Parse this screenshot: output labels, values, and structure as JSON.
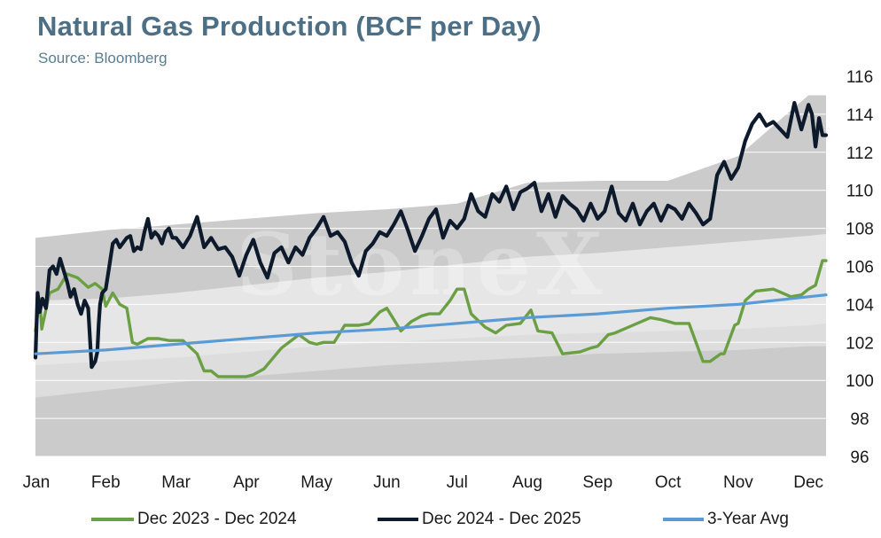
{
  "header": {
    "title": "Natural Gas Production (BCF per Day)",
    "subtitle": "Source: Bloomberg"
  },
  "watermark": "StoneX",
  "chart_data": {
    "type": "line",
    "title": "Natural Gas Production (BCF per Day)",
    "xlabel": "",
    "ylabel": "",
    "ylim": [
      96,
      116
    ],
    "yticks": [
      96,
      98,
      100,
      102,
      104,
      106,
      108,
      110,
      112,
      114,
      116
    ],
    "y_axis_side": "right",
    "x_month_labels": [
      "Jan",
      "Feb",
      "Mar",
      "Apr",
      "May",
      "Jun",
      "Jul",
      "Aug",
      "Sep",
      "Oct",
      "Nov",
      "Dec"
    ],
    "x_unit": "month (0 = Jan 1, 11 = Dec 1)",
    "xlim": [
      0,
      11.25
    ],
    "grid": "horizontal",
    "legend_position": "bottom",
    "bands": {
      "x": [
        0,
        1,
        2,
        3,
        4,
        5,
        6,
        7,
        8,
        9,
        10,
        11,
        11.25
      ],
      "outer_max": [
        107.5,
        107.9,
        108.2,
        108.5,
        108.8,
        109.0,
        109.3,
        110.4,
        110.5,
        110.5,
        111.8,
        115.0,
        115.0
      ],
      "inner_max": [
        104.2,
        104.3,
        104.6,
        105.0,
        105.4,
        105.7,
        106.1,
        106.5,
        106.7,
        107.0,
        107.3,
        107.6,
        107.7
      ],
      "inner_min": [
        100.8,
        101.0,
        101.2,
        101.5,
        101.8,
        102.0,
        102.2,
        102.4,
        102.5,
        102.6,
        102.7,
        102.9,
        103.0
      ],
      "outer_min": [
        99.1,
        99.5,
        99.9,
        100.2,
        100.5,
        100.8,
        101.0,
        101.2,
        101.4,
        101.5,
        101.6,
        101.8,
        101.8
      ]
    },
    "colors": {
      "outer_band": "#cccbcb",
      "inner_band": "#dddddd",
      "middle_band": "#e6e6e6",
      "grid": "#ffffff"
    },
    "series": [
      {
        "name": "Dec 2023 - Dec 2024",
        "color": "#6aa043",
        "x": [
          0,
          0.06,
          0.09,
          0.2,
          0.32,
          0.45,
          0.6,
          0.75,
          0.85,
          0.95,
          1.0,
          1.1,
          1.2,
          1.3,
          1.38,
          1.45,
          1.6,
          1.75,
          1.9,
          2.0,
          2.1,
          2.3,
          2.4,
          2.5,
          2.6,
          2.75,
          2.9,
          3.0,
          3.1,
          3.25,
          3.5,
          3.75,
          3.9,
          4.0,
          4.1,
          4.25,
          4.4,
          4.6,
          4.75,
          4.9,
          5.0,
          5.2,
          5.35,
          5.5,
          5.6,
          5.75,
          5.9,
          6.0,
          6.1,
          6.2,
          6.4,
          6.55,
          6.7,
          6.9,
          7.05,
          7.15,
          7.35,
          7.5,
          7.75,
          7.9,
          8.0,
          8.15,
          8.25,
          8.5,
          8.75,
          8.9,
          9.0,
          9.1,
          9.25,
          9.3,
          9.5,
          9.6,
          9.75,
          9.8,
          9.95,
          10.0,
          10.1,
          10.25,
          10.5,
          10.75,
          10.9,
          11.0,
          11.1,
          11.2,
          11.25
        ],
        "values": [
          102.6,
          104.3,
          102.7,
          104.6,
          104.8,
          105.6,
          105.4,
          104.9,
          105.1,
          104.8,
          103.9,
          104.6,
          104.0,
          103.8,
          102.0,
          101.9,
          102.2,
          102.2,
          102.1,
          102.1,
          102.1,
          101.4,
          100.5,
          100.5,
          100.2,
          100.2,
          100.2,
          100.2,
          100.3,
          100.6,
          101.7,
          102.4,
          102.0,
          101.9,
          102.0,
          102.0,
          102.9,
          102.9,
          103.0,
          103.6,
          103.8,
          102.6,
          103.1,
          103.4,
          103.5,
          103.5,
          104.2,
          104.8,
          104.8,
          103.5,
          102.8,
          102.5,
          102.9,
          103.0,
          103.7,
          102.6,
          102.5,
          101.4,
          101.5,
          101.7,
          101.8,
          102.4,
          102.5,
          102.9,
          103.3,
          103.2,
          103.1,
          103.0,
          103.0,
          103.0,
          101.0,
          101.0,
          101.4,
          101.4,
          102.9,
          103.0,
          104.2,
          104.7,
          104.8,
          104.4,
          104.5,
          104.8,
          105.0,
          106.3,
          106.3
        ]
      },
      {
        "name": "Dec 2024 - Dec 2025",
        "color": "#0c1a2c",
        "x": [
          0,
          0.03,
          0.06,
          0.1,
          0.15,
          0.2,
          0.25,
          0.3,
          0.35,
          0.4,
          0.45,
          0.5,
          0.55,
          0.6,
          0.65,
          0.7,
          0.75,
          0.8,
          0.85,
          0.88,
          0.9,
          0.92,
          0.95,
          1.0,
          1.05,
          1.1,
          1.15,
          1.2,
          1.3,
          1.35,
          1.4,
          1.45,
          1.5,
          1.55,
          1.6,
          1.65,
          1.7,
          1.75,
          1.8,
          1.85,
          1.9,
          1.95,
          2.0,
          2.1,
          2.2,
          2.3,
          2.4,
          2.5,
          2.6,
          2.7,
          2.8,
          2.9,
          3.0,
          3.1,
          3.2,
          3.3,
          3.4,
          3.5,
          3.6,
          3.7,
          3.8,
          3.9,
          4.0,
          4.1,
          4.2,
          4.3,
          4.4,
          4.5,
          4.6,
          4.7,
          4.8,
          4.9,
          5.0,
          5.1,
          5.2,
          5.3,
          5.4,
          5.5,
          5.6,
          5.7,
          5.8,
          5.9,
          6.0,
          6.1,
          6.2,
          6.3,
          6.4,
          6.5,
          6.6,
          6.7,
          6.8,
          6.9,
          7.0,
          7.1,
          7.2,
          7.3,
          7.4,
          7.5,
          7.6,
          7.7,
          7.8,
          7.9,
          8.0,
          8.1,
          8.2,
          8.3,
          8.4,
          8.5,
          8.6,
          8.7,
          8.8,
          8.9,
          9.0,
          9.1,
          9.2,
          9.3,
          9.4,
          9.5,
          9.6,
          9.7,
          9.8,
          9.9,
          10.0,
          10.1,
          10.2,
          10.3,
          10.4,
          10.5,
          10.6,
          10.7,
          10.8,
          10.9,
          11.0,
          11.05,
          11.1,
          11.15,
          11.2,
          11.25
        ],
        "values": [
          101.2,
          104.6,
          103.6,
          104.3,
          103.8,
          105.8,
          106.0,
          105.6,
          106.4,
          105.8,
          105.2,
          104.4,
          104.8,
          104.0,
          103.5,
          104.2,
          103.8,
          100.7,
          101.0,
          101.5,
          103.0,
          104.0,
          104.6,
          104.8,
          106.0,
          107.2,
          107.4,
          107.0,
          107.5,
          107.6,
          106.8,
          107.0,
          106.9,
          107.8,
          108.5,
          107.5,
          107.8,
          107.6,
          107.2,
          107.8,
          108.0,
          107.5,
          107.5,
          107.0,
          107.6,
          108.6,
          107.0,
          107.5,
          106.9,
          107.0,
          106.5,
          105.5,
          106.6,
          107.4,
          106.2,
          105.4,
          106.7,
          107.0,
          106.2,
          107.0,
          106.6,
          107.5,
          108.0,
          108.6,
          107.6,
          107.8,
          107.3,
          106.2,
          105.5,
          106.8,
          107.2,
          107.8,
          107.6,
          108.2,
          108.9,
          107.9,
          106.8,
          107.6,
          108.5,
          109.0,
          107.5,
          108.4,
          108.0,
          108.5,
          109.8,
          108.9,
          108.6,
          109.8,
          109.4,
          110.2,
          109.0,
          109.9,
          110.1,
          110.4,
          108.9,
          109.8,
          108.6,
          109.7,
          109.3,
          109.0,
          108.4,
          109.3,
          108.5,
          108.9,
          110.2,
          108.8,
          108.4,
          109.3,
          108.2,
          108.9,
          109.3,
          108.4,
          109.2,
          109.0,
          108.5,
          109.3,
          108.8,
          108.2,
          108.5,
          110.8,
          111.5,
          110.6,
          111.2,
          112.6,
          113.5,
          114.0,
          113.4,
          113.6,
          113.2,
          112.8,
          114.6,
          113.2,
          114.5,
          114.0,
          112.3,
          113.8,
          112.9,
          112.9
        ]
      },
      {
        "name": "3-Year Avg",
        "color": "#5b9bd5",
        "x": [
          0,
          1,
          2,
          3,
          4,
          5,
          6,
          7,
          8,
          9,
          10,
          11,
          11.25
        ],
        "values": [
          101.4,
          101.6,
          101.9,
          102.2,
          102.5,
          102.7,
          103.0,
          103.3,
          103.5,
          103.8,
          104.0,
          104.4,
          104.5
        ]
      }
    ]
  }
}
